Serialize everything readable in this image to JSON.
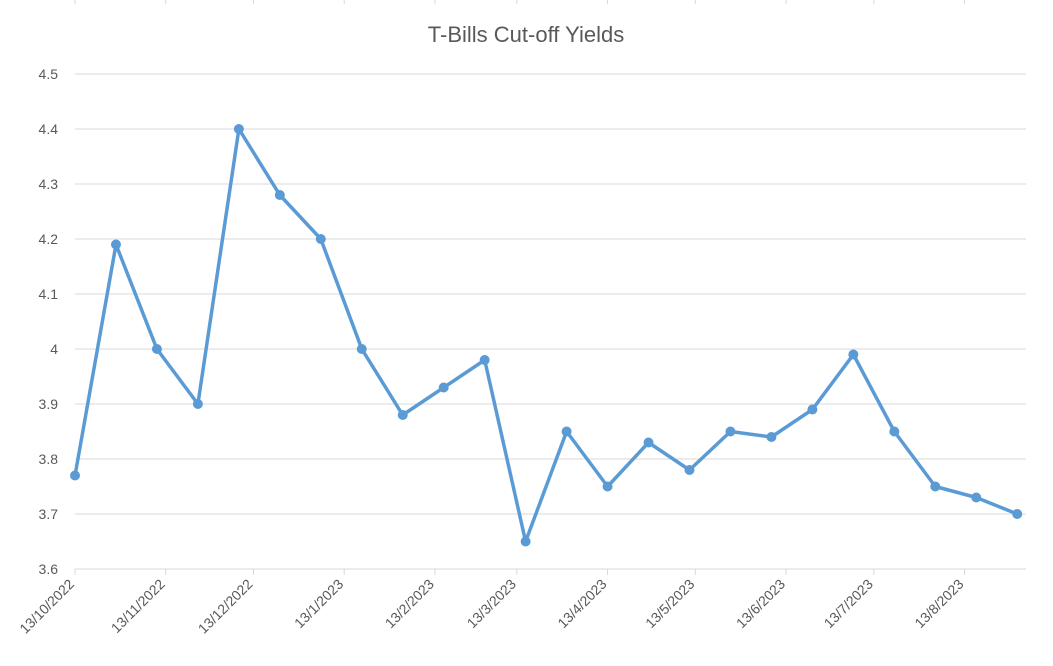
{
  "chart_data": {
    "type": "line",
    "title": "T-Bills Cut-off Yields",
    "xlabel": "",
    "ylabel": "",
    "ylim": [
      3.6,
      4.5
    ],
    "y_ticks": [
      "3.6",
      "3.7",
      "3.8",
      "3.9",
      "4",
      "4.1",
      "4.2",
      "4.3",
      "4.4",
      "4.5"
    ],
    "x_tick_labels": [
      {
        "label": "13/10/2022",
        "date": "2022-10-13"
      },
      {
        "label": "13/11/2022",
        "date": "2022-11-13"
      },
      {
        "label": "13/12/2022",
        "date": "2022-12-13"
      },
      {
        "label": "13/1/2023",
        "date": "2023-01-13"
      },
      {
        "label": "13/2/2023",
        "date": "2023-02-13"
      },
      {
        "label": "13/3/2023",
        "date": "2023-03-13"
      },
      {
        "label": "13/4/2023",
        "date": "2023-04-13"
      },
      {
        "label": "13/5/2023",
        "date": "2023-05-13"
      },
      {
        "label": "13/6/2023",
        "date": "2023-06-13"
      },
      {
        "label": "13/7/2023",
        "date": "2023-07-13"
      },
      {
        "label": "13/8/2023",
        "date": "2023-08-13"
      }
    ],
    "xlim": [
      "2022-10-13",
      "2023-09-03"
    ],
    "grid": true,
    "legend": "none",
    "line_color": "#5B9BD5",
    "gridline_color": "#D9D9D9",
    "series": [
      {
        "points": [
          {
            "x": "2022-10-13",
            "y": 3.77
          },
          {
            "x": "2022-10-27",
            "y": 4.19
          },
          {
            "x": "2022-11-10",
            "y": 4.0
          },
          {
            "x": "2022-11-24",
            "y": 3.9
          },
          {
            "x": "2022-12-08",
            "y": 4.4
          },
          {
            "x": "2022-12-22",
            "y": 4.28
          },
          {
            "x": "2023-01-05",
            "y": 4.2
          },
          {
            "x": "2023-01-19",
            "y": 4.0
          },
          {
            "x": "2023-02-02",
            "y": 3.88
          },
          {
            "x": "2023-02-16",
            "y": 3.93
          },
          {
            "x": "2023-03-02",
            "y": 3.98
          },
          {
            "x": "2023-03-16",
            "y": 3.65
          },
          {
            "x": "2023-03-30",
            "y": 3.85
          },
          {
            "x": "2023-04-13",
            "y": 3.75
          },
          {
            "x": "2023-04-27",
            "y": 3.83
          },
          {
            "x": "2023-05-11",
            "y": 3.78
          },
          {
            "x": "2023-05-25",
            "y": 3.85
          },
          {
            "x": "2023-06-08",
            "y": 3.84
          },
          {
            "x": "2023-06-22",
            "y": 3.89
          },
          {
            "x": "2023-07-06",
            "y": 3.99
          },
          {
            "x": "2023-07-20",
            "y": 3.85
          },
          {
            "x": "2023-08-03",
            "y": 3.75
          },
          {
            "x": "2023-08-17",
            "y": 3.73
          },
          {
            "x": "2023-08-31",
            "y": 3.7
          }
        ]
      }
    ]
  }
}
